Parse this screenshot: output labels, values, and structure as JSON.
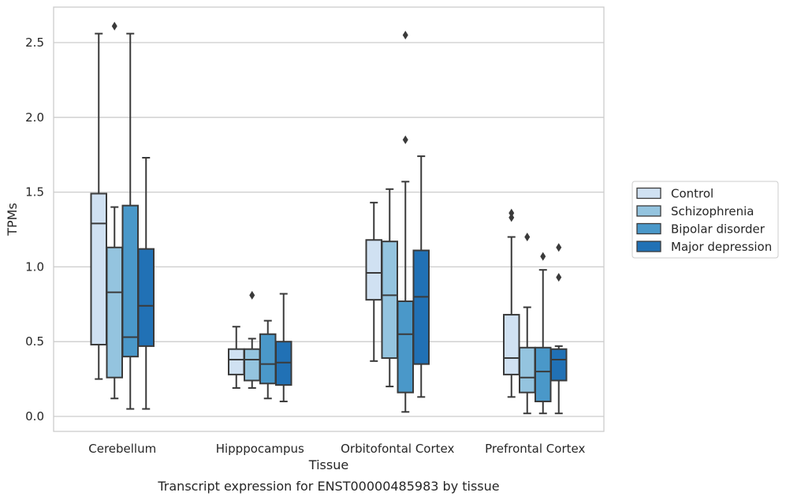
{
  "caption": "Transcript expression for ENST00000485983 by tissue",
  "chart_data": {
    "type": "boxplot",
    "xlabel": "Tissue",
    "ylabel": "TPMs",
    "ylim": [
      -0.1,
      2.73
    ],
    "yticks": [
      0.0,
      0.5,
      1.0,
      1.5,
      2.0,
      2.5
    ],
    "ytick_labels": [
      "0.0",
      "0.5",
      "1.0",
      "1.5",
      "2.0",
      "2.5"
    ],
    "grid": "horizontal",
    "legend_position": "right",
    "categories": [
      "Cerebellum",
      "Hipppocampus",
      "Orbitofontal Cortex",
      "Prefrontal Cortex"
    ],
    "series": [
      {
        "name": "Control",
        "color": "#d0e1f2",
        "boxes": [
          {
            "whislo": 0.25,
            "q1": 0.48,
            "med": 1.29,
            "q3": 1.49,
            "whishi": 2.56,
            "fliers": []
          },
          {
            "whislo": 0.19,
            "q1": 0.28,
            "med": 0.38,
            "q3": 0.45,
            "whishi": 0.6,
            "fliers": []
          },
          {
            "whislo": 0.37,
            "q1": 0.78,
            "med": 0.96,
            "q3": 1.18,
            "whishi": 1.43,
            "fliers": []
          },
          {
            "whislo": 0.13,
            "q1": 0.28,
            "med": 0.39,
            "q3": 0.68,
            "whishi": 1.2,
            "fliers": [
              1.33,
              1.36
            ]
          }
        ]
      },
      {
        "name": "Schizophrenia",
        "color": "#94c4df",
        "boxes": [
          {
            "whislo": 0.12,
            "q1": 0.26,
            "med": 0.83,
            "q3": 1.13,
            "whishi": 1.4,
            "fliers": [
              2.61
            ]
          },
          {
            "whislo": 0.19,
            "q1": 0.24,
            "med": 0.38,
            "q3": 0.45,
            "whishi": 0.52,
            "fliers": [
              0.81
            ]
          },
          {
            "whislo": 0.2,
            "q1": 0.39,
            "med": 0.81,
            "q3": 1.17,
            "whishi": 1.52,
            "fliers": []
          },
          {
            "whislo": 0.02,
            "q1": 0.16,
            "med": 0.26,
            "q3": 0.46,
            "whishi": 0.73,
            "fliers": [
              1.2
            ]
          }
        ]
      },
      {
        "name": "Bipolar disorder",
        "color": "#4a98c9",
        "boxes": [
          {
            "whislo": 0.05,
            "q1": 0.4,
            "med": 0.53,
            "q3": 1.41,
            "whishi": 2.56,
            "fliers": []
          },
          {
            "whislo": 0.12,
            "q1": 0.22,
            "med": 0.35,
            "q3": 0.55,
            "whishi": 0.64,
            "fliers": []
          },
          {
            "whislo": 0.03,
            "q1": 0.16,
            "med": 0.55,
            "q3": 0.77,
            "whishi": 1.57,
            "fliers": [
              1.85,
              2.55
            ]
          },
          {
            "whislo": 0.02,
            "q1": 0.1,
            "med": 0.3,
            "q3": 0.46,
            "whishi": 0.98,
            "fliers": [
              1.07
            ]
          }
        ]
      },
      {
        "name": "Major depression",
        "color": "#2171b5",
        "boxes": [
          {
            "whislo": 0.05,
            "q1": 0.47,
            "med": 0.74,
            "q3": 1.12,
            "whishi": 1.73,
            "fliers": []
          },
          {
            "whislo": 0.1,
            "q1": 0.21,
            "med": 0.36,
            "q3": 0.5,
            "whishi": 0.82,
            "fliers": []
          },
          {
            "whislo": 0.13,
            "q1": 0.35,
            "med": 0.8,
            "q3": 1.11,
            "whishi": 1.74,
            "fliers": []
          },
          {
            "whislo": 0.02,
            "q1": 0.24,
            "med": 0.38,
            "q3": 0.45,
            "whishi": 0.47,
            "fliers": [
              0.93,
              1.13
            ]
          }
        ]
      }
    ]
  }
}
